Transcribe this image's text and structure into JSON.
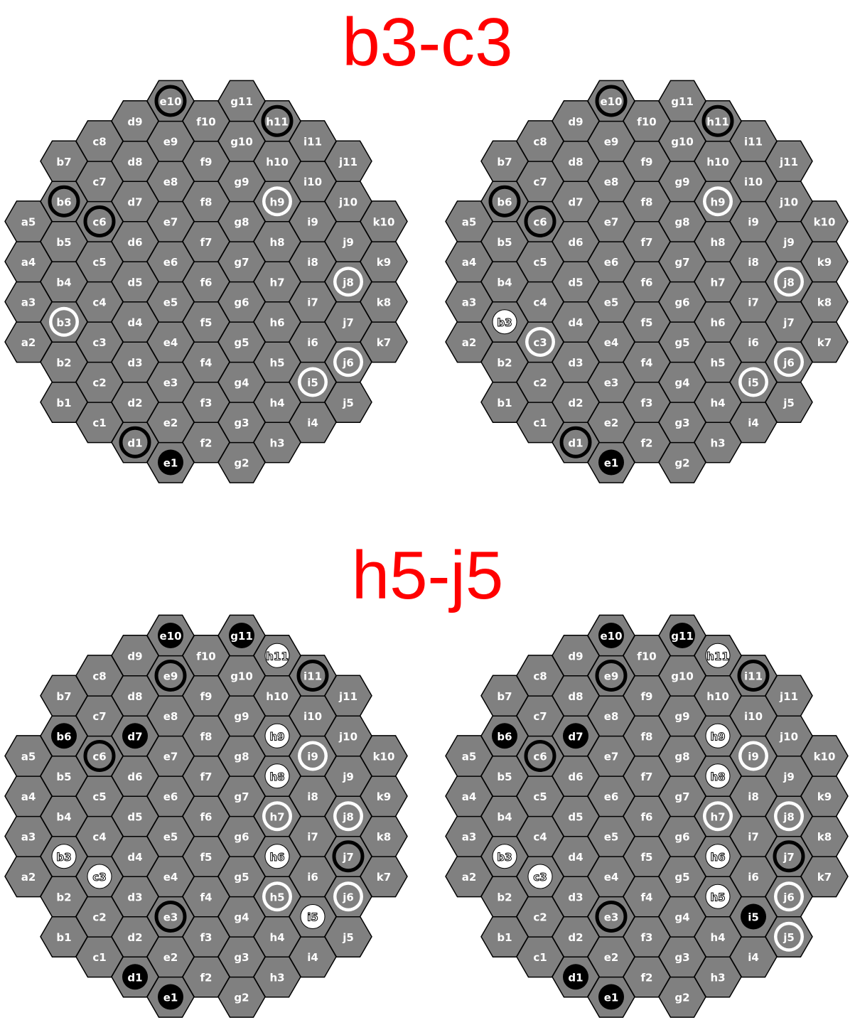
{
  "titles": [
    "b3-c3",
    "h5-j5"
  ],
  "colors": {
    "cell": "#808080",
    "cell_border": "#000000",
    "label_normal": "#ffffff",
    "black_stone": "#000000",
    "white_stone": "#ffffff",
    "heading": "#ff0000"
  },
  "board": {
    "columns": [
      "a",
      "b",
      "c",
      "d",
      "e",
      "f",
      "g",
      "h",
      "i",
      "j",
      "k"
    ],
    "rows_per_column": [
      [
        2,
        5
      ],
      [
        1,
        7
      ],
      [
        1,
        8
      ],
      [
        1,
        9
      ],
      [
        1,
        10
      ],
      [
        2,
        10
      ],
      [
        2,
        11
      ],
      [
        3,
        11
      ],
      [
        4,
        11
      ],
      [
        5,
        11
      ],
      [
        7,
        10
      ]
    ]
  },
  "diagrams": [
    {
      "section": 0,
      "stones": [
        {
          "cell": "e10",
          "kind": "ring-black"
        },
        {
          "cell": "h11",
          "kind": "ring-black"
        },
        {
          "cell": "b6",
          "kind": "ring-black"
        },
        {
          "cell": "c6",
          "kind": "ring-black"
        },
        {
          "cell": "h9",
          "kind": "ring-white"
        },
        {
          "cell": "j8",
          "kind": "ring-white"
        },
        {
          "cell": "b3",
          "kind": "ring-white"
        },
        {
          "cell": "j6",
          "kind": "ring-white"
        },
        {
          "cell": "i5",
          "kind": "ring-white"
        },
        {
          "cell": "d1",
          "kind": "ring-black"
        },
        {
          "cell": "e1",
          "kind": "stone-black"
        }
      ]
    },
    {
      "section": 0,
      "stones": [
        {
          "cell": "e10",
          "kind": "ring-black"
        },
        {
          "cell": "h11",
          "kind": "ring-black"
        },
        {
          "cell": "b6",
          "kind": "ring-black"
        },
        {
          "cell": "c6",
          "kind": "ring-black"
        },
        {
          "cell": "h9",
          "kind": "ring-white"
        },
        {
          "cell": "j8",
          "kind": "ring-white"
        },
        {
          "cell": "b3",
          "kind": "stone-white"
        },
        {
          "cell": "c3",
          "kind": "ring-white"
        },
        {
          "cell": "j6",
          "kind": "ring-white"
        },
        {
          "cell": "i5",
          "kind": "ring-white"
        },
        {
          "cell": "d1",
          "kind": "ring-black"
        },
        {
          "cell": "e1",
          "kind": "stone-black"
        }
      ]
    },
    {
      "section": 1,
      "stones": [
        {
          "cell": "e10",
          "kind": "stone-black"
        },
        {
          "cell": "g11",
          "kind": "stone-black"
        },
        {
          "cell": "h11",
          "kind": "stone-white"
        },
        {
          "cell": "e9",
          "kind": "ring-black"
        },
        {
          "cell": "i11",
          "kind": "ring-black"
        },
        {
          "cell": "b6",
          "kind": "stone-black"
        },
        {
          "cell": "d7",
          "kind": "stone-black"
        },
        {
          "cell": "c6",
          "kind": "ring-black"
        },
        {
          "cell": "h9",
          "kind": "stone-white"
        },
        {
          "cell": "i9",
          "kind": "ring-white"
        },
        {
          "cell": "h8",
          "kind": "stone-white"
        },
        {
          "cell": "h7",
          "kind": "ring-white"
        },
        {
          "cell": "j8",
          "kind": "ring-white"
        },
        {
          "cell": "b3",
          "kind": "stone-white"
        },
        {
          "cell": "h6",
          "kind": "stone-white"
        },
        {
          "cell": "j7",
          "kind": "ring-black"
        },
        {
          "cell": "c3",
          "kind": "stone-white"
        },
        {
          "cell": "h5",
          "kind": "ring-white"
        },
        {
          "cell": "j6",
          "kind": "ring-white"
        },
        {
          "cell": "e3",
          "kind": "ring-black"
        },
        {
          "cell": "i5",
          "kind": "stone-white"
        },
        {
          "cell": "d1",
          "kind": "stone-black"
        },
        {
          "cell": "e1",
          "kind": "stone-black"
        }
      ]
    },
    {
      "section": 1,
      "stones": [
        {
          "cell": "e10",
          "kind": "stone-black"
        },
        {
          "cell": "g11",
          "kind": "stone-black"
        },
        {
          "cell": "h11",
          "kind": "stone-white"
        },
        {
          "cell": "e9",
          "kind": "ring-black"
        },
        {
          "cell": "i11",
          "kind": "ring-black"
        },
        {
          "cell": "b6",
          "kind": "stone-black"
        },
        {
          "cell": "d7",
          "kind": "stone-black"
        },
        {
          "cell": "c6",
          "kind": "ring-black"
        },
        {
          "cell": "h9",
          "kind": "stone-white"
        },
        {
          "cell": "i9",
          "kind": "ring-white"
        },
        {
          "cell": "h8",
          "kind": "stone-white"
        },
        {
          "cell": "h7",
          "kind": "ring-white"
        },
        {
          "cell": "j8",
          "kind": "ring-white"
        },
        {
          "cell": "b3",
          "kind": "stone-white"
        },
        {
          "cell": "h6",
          "kind": "stone-white"
        },
        {
          "cell": "j7",
          "kind": "ring-black"
        },
        {
          "cell": "c3",
          "kind": "stone-white"
        },
        {
          "cell": "h5",
          "kind": "stone-white"
        },
        {
          "cell": "j6",
          "kind": "ring-white"
        },
        {
          "cell": "e3",
          "kind": "ring-black"
        },
        {
          "cell": "i5",
          "kind": "stone-black"
        },
        {
          "cell": "j5",
          "kind": "ring-white"
        },
        {
          "cell": "d1",
          "kind": "stone-black"
        },
        {
          "cell": "e1",
          "kind": "stone-black"
        }
      ]
    }
  ]
}
